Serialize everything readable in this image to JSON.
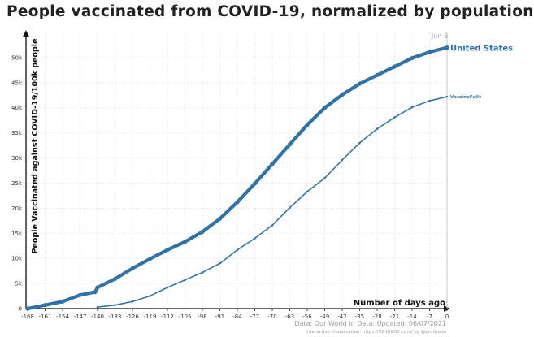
{
  "chart_data": {
    "type": "line",
    "title": "People vaccinated from COVID-19, normalized by population",
    "xlabel": "Number of days ago",
    "ylabel": "People Vaccinated against COVID-19/100k people",
    "xlim": [
      -168,
      0
    ],
    "ylim": [
      0,
      55000
    ],
    "x_ticks": [
      -168,
      -161,
      -154,
      -147,
      -140,
      -133,
      -126,
      -119,
      -112,
      -105,
      -98,
      -91,
      -84,
      -77,
      -70,
      -63,
      -56,
      -49,
      -42,
      -35,
      -28,
      -21,
      -14,
      -7,
      0
    ],
    "y_ticks": [
      0,
      5000,
      10000,
      15000,
      20000,
      25000,
      30000,
      35000,
      40000,
      45000,
      50000
    ],
    "y_tick_labels": [
      "0",
      "5k",
      "10k",
      "15k",
      "20k",
      "25k",
      "30k",
      "35k",
      "40k",
      "45k",
      "50k"
    ],
    "date_marker": "Jun 6",
    "grid": true,
    "series": [
      {
        "name": "United States",
        "color": "#2f73a6",
        "style": "thick-dots",
        "x": [
          -168,
          -161,
          -154,
          -147,
          -141,
          -140,
          -133,
          -126,
          -119,
          -112,
          -105,
          -98,
          -91,
          -84,
          -77,
          -70,
          -63,
          -56,
          -49,
          -42,
          -35,
          -28,
          -21,
          -14,
          -7,
          0
        ],
        "y": [
          0,
          700,
          1400,
          2700,
          3300,
          4200,
          5900,
          8000,
          9900,
          11700,
          13300,
          15300,
          17900,
          21200,
          24900,
          28800,
          32700,
          36600,
          40000,
          42600,
          44800,
          46500,
          48200,
          49900,
          51100,
          52000
        ]
      },
      {
        "name": "VaccineFully",
        "color": "#2f73a6",
        "style": "thin-dots",
        "x": [
          -140,
          -133,
          -126,
          -119,
          -112,
          -105,
          -98,
          -91,
          -84,
          -77,
          -70,
          -63,
          -56,
          -49,
          -42,
          -35,
          -28,
          -21,
          -14,
          -7,
          0
        ],
        "y": [
          300,
          700,
          1400,
          2500,
          4200,
          5700,
          7200,
          9000,
          11700,
          14000,
          16600,
          20100,
          23300,
          26000,
          29600,
          33000,
          35800,
          38100,
          40100,
          41400,
          42200
        ]
      }
    ]
  },
  "source": {
    "line1": "Data: Our World in Data; Updated: 06/07/2021",
    "line2": "Interactive Visualization: https://91-DIVOC.com/ by @profwade"
  }
}
